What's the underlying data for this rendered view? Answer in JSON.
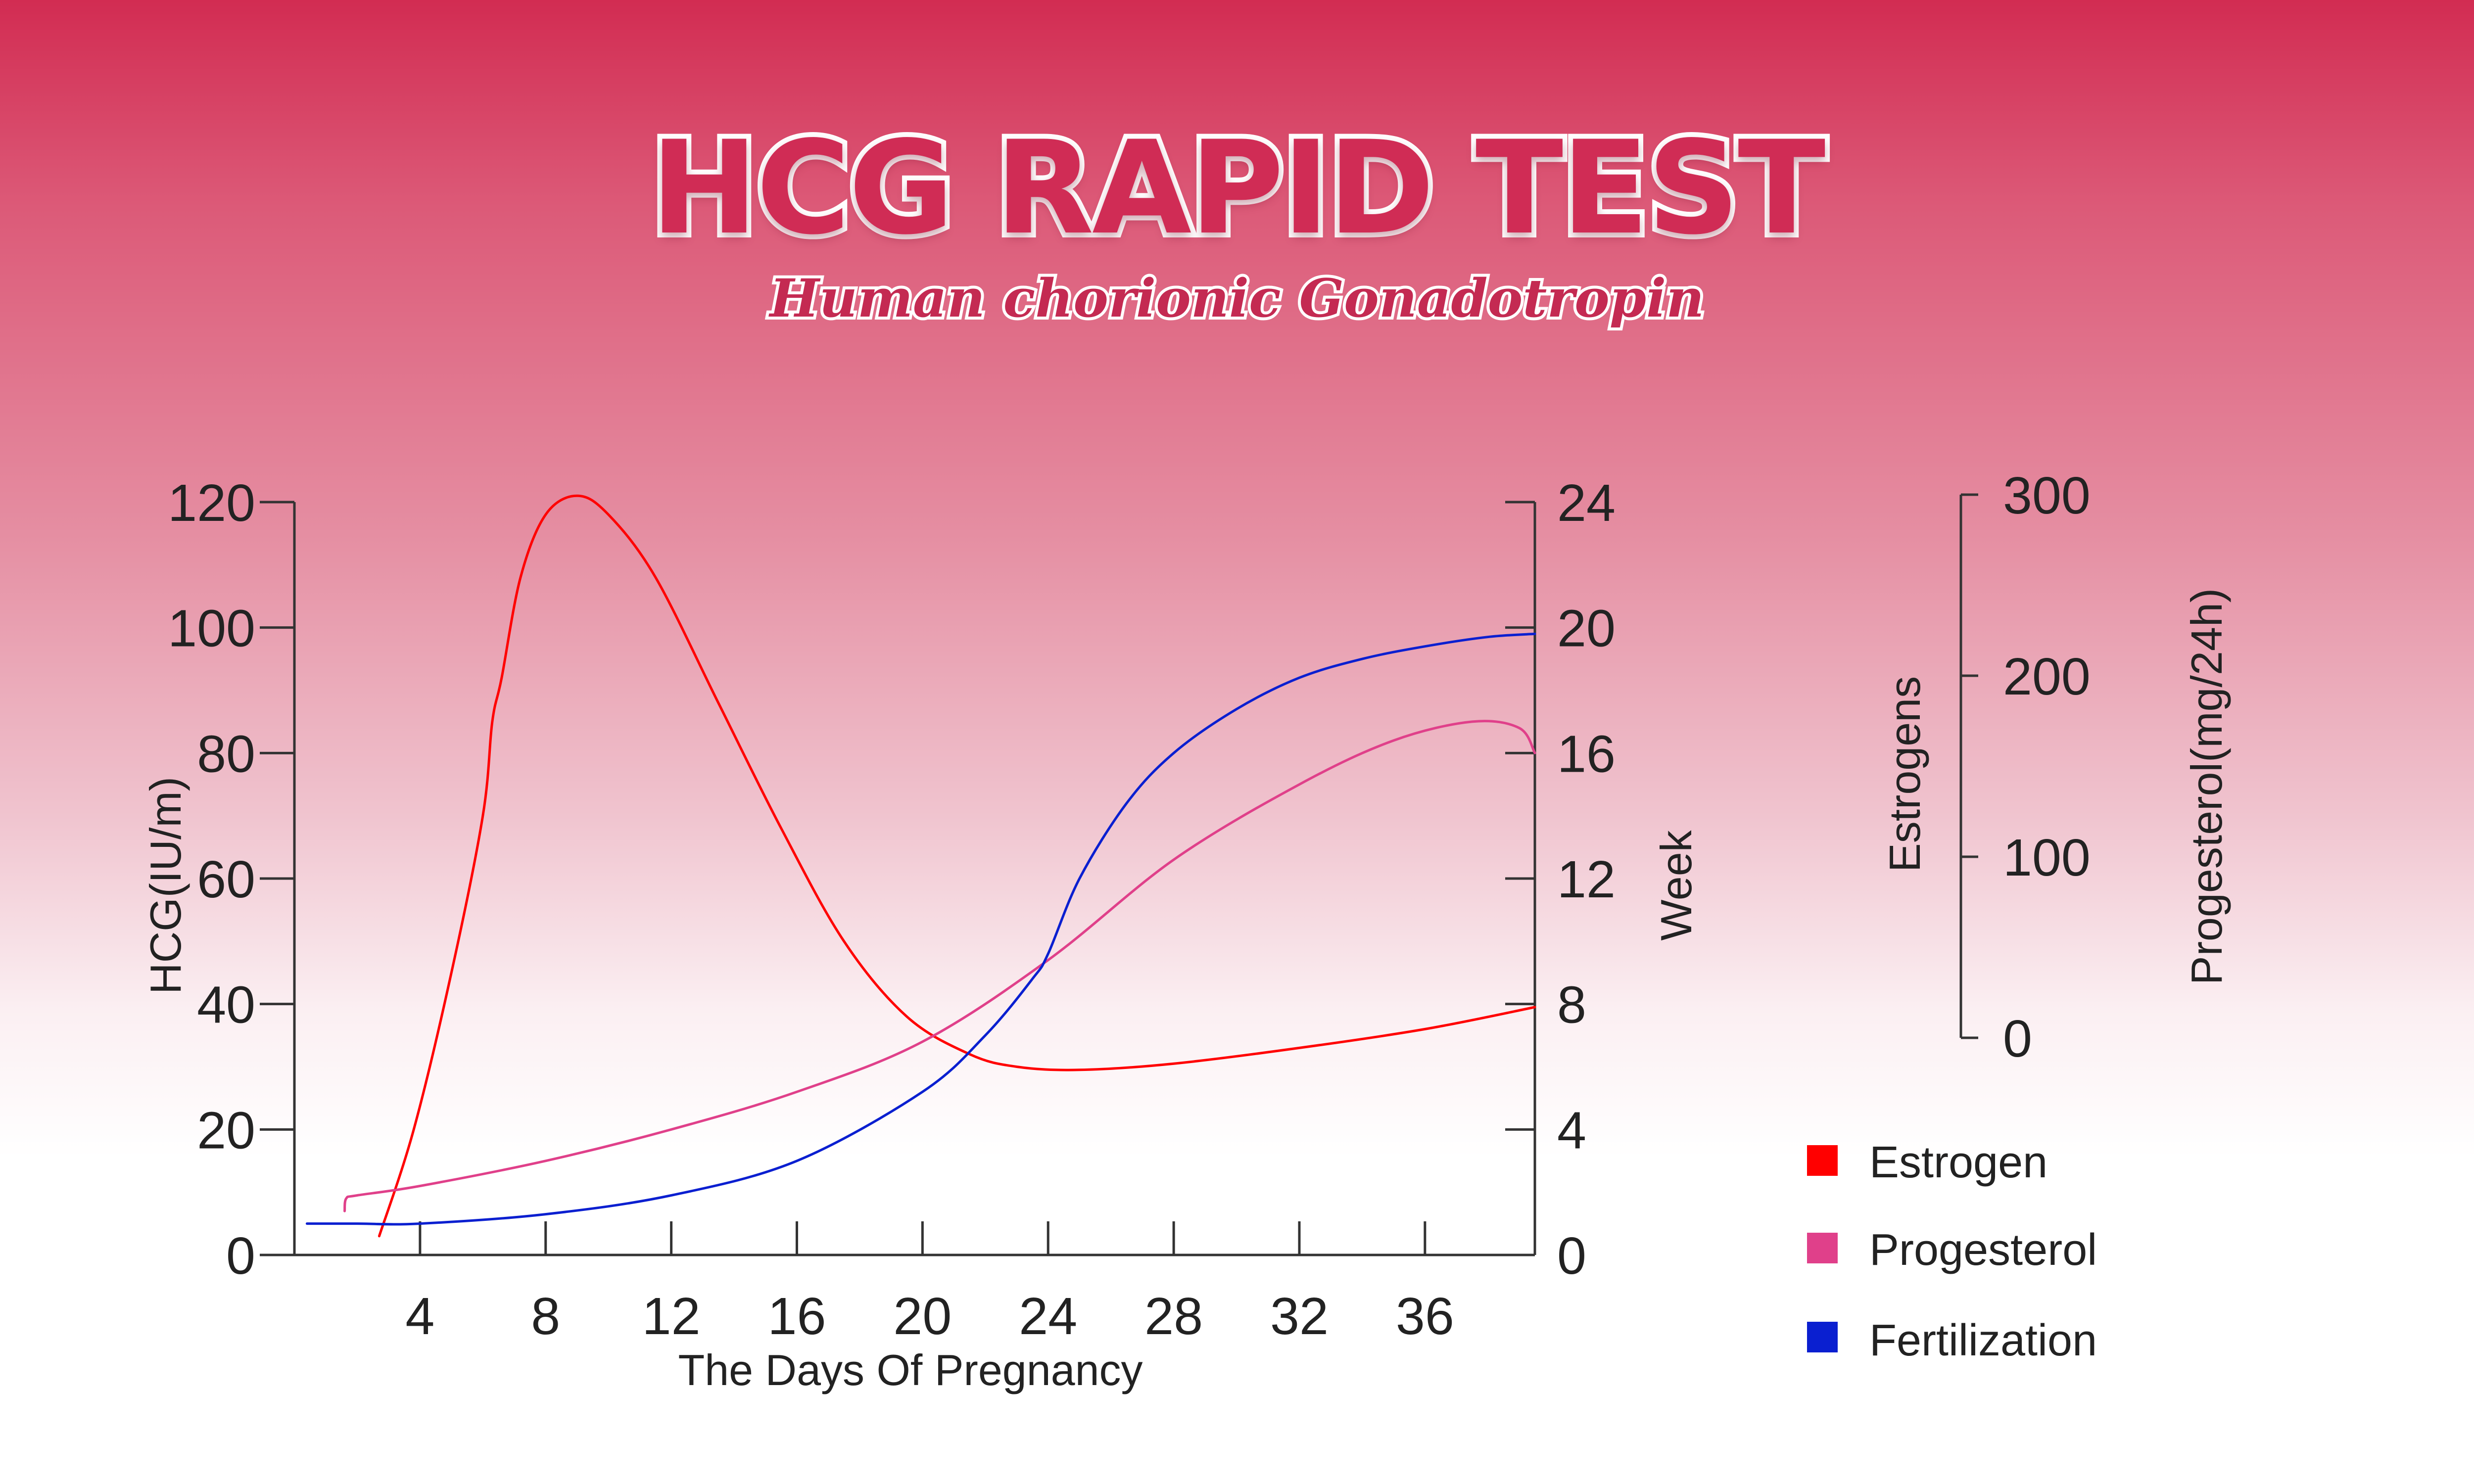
{
  "header": {
    "title": "HCG RAPID TEST",
    "subtitle": "Human chorionic Gonadotropin"
  },
  "chart_data": {
    "type": "line",
    "title": "HCG RAPID TEST",
    "subtitle": "Human chorionic Gonadotropin",
    "xlabel": "The Days Of Pregnancy",
    "x_ticks": [
      "4",
      "8",
      "12",
      "16",
      "20",
      "24",
      "28",
      "32",
      "36"
    ],
    "xlim": [
      0,
      39.5
    ],
    "y_left": {
      "label": "HCG(IU/m)",
      "ylim": [
        0,
        120
      ],
      "ticks": [
        "0",
        "20",
        "40",
        "60",
        "80",
        "100",
        "120"
      ]
    },
    "y_right": {
      "label": "Week",
      "ylim": [
        0,
        24
      ],
      "ticks": [
        "0",
        "4",
        "8",
        "12",
        "16",
        "20",
        "24"
      ]
    },
    "y_side": {
      "label_left": "Estrogens",
      "label_right": "Progesterol(mg/24h)",
      "ylim": [
        0,
        300
      ],
      "ticks": [
        "0",
        "100",
        "200",
        "300"
      ]
    },
    "series": [
      {
        "name": "Estrogen",
        "color": "#ff0000",
        "x": [
          2.7,
          3.8,
          5.0,
          6.0,
          6.3,
          6.6,
          7.2,
          8.0,
          9.0,
          10.0,
          11.5,
          13.5,
          15.5,
          17.5,
          19.5,
          21.5,
          23.0,
          25.0,
          28.0,
          32.0,
          36.0,
          39.5
        ],
        "y": [
          3,
          20,
          45,
          70,
          85,
          92,
          108,
          118,
          121,
          118,
          108,
          88,
          68,
          50,
          38,
          32,
          30,
          29.5,
          30.5,
          33,
          36,
          39.5
        ]
      },
      {
        "name": "Progesterol",
        "color": "#e0408a",
        "x": [
          1.6,
          1.65,
          2.0,
          4.0,
          8.0,
          12.0,
          16.0,
          20.0,
          24.0,
          28.0,
          32.0,
          35.0,
          37.5,
          39.0,
          39.5
        ],
        "y": [
          7,
          9,
          9.5,
          11,
          15,
          20,
          26,
          34,
          47,
          63,
          75,
          82,
          85,
          84,
          80
        ]
      },
      {
        "name": "Fertilization",
        "color": "#0a1fd0",
        "x": [
          0.4,
          2.0,
          4.0,
          8.0,
          12.0,
          16.0,
          20.0,
          22.0,
          23.5,
          24.0,
          25.0,
          26.5,
          28.0,
          30.0,
          32.0,
          34.0,
          36.0,
          38.0,
          39.5
        ],
        "y": [
          5,
          5,
          5,
          6.5,
          9.5,
          15,
          26,
          35,
          44,
          48,
          60,
          72,
          80,
          87,
          92,
          95,
          97,
          98.5,
          99
        ]
      }
    ],
    "legend": {
      "position": "bottom-right",
      "items": [
        {
          "label": "Estrogen",
          "color": "#ff0000"
        },
        {
          "label": "Progesterol",
          "color": "#e0408a"
        },
        {
          "label": "Fertilization",
          "color": "#0a1fd0"
        }
      ]
    }
  }
}
